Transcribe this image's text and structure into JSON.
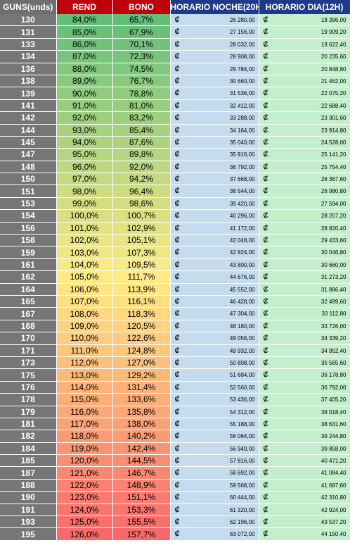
{
  "headers": {
    "guns": "GUNS(unds)",
    "rend": "REND",
    "bono": "BONO",
    "noche": "HORARIO NOCHE(20H)",
    "dia": "HORARIO DIA(12H)"
  },
  "currency_symbol": "₡",
  "colors": {
    "guns_bg": "#767676",
    "noche_bg": "#c5dcef",
    "dia_bg": "#c4efcd",
    "scale_low": "#63be7b",
    "scale_mid": "#ffeb84",
    "scale_high": "#f8696b"
  },
  "rows": [
    {
      "guns": "130",
      "rend": "84,0%",
      "bono": "65,7%",
      "noche": "26 280,00",
      "dia": "18 396,00"
    },
    {
      "guns": "131",
      "rend": "85,0%",
      "bono": "67,9%",
      "noche": "27 156,00",
      "dia": "19 009,20"
    },
    {
      "guns": "133",
      "rend": "86,0%",
      "bono": "70,1%",
      "noche": "28 032,00",
      "dia": "19 622,40"
    },
    {
      "guns": "134",
      "rend": "87,0%",
      "bono": "72,3%",
      "noche": "28 908,00",
      "dia": "20 235,60"
    },
    {
      "guns": "136",
      "rend": "88,0%",
      "bono": "74,5%",
      "noche": "29 784,00",
      "dia": "20 848,80"
    },
    {
      "guns": "138",
      "rend": "89,0%",
      "bono": "76,7%",
      "noche": "30 660,00",
      "dia": "21 462,00"
    },
    {
      "guns": "139",
      "rend": "90,0%",
      "bono": "78,8%",
      "noche": "31 536,00",
      "dia": "22 075,20"
    },
    {
      "guns": "141",
      "rend": "91,0%",
      "bono": "81,0%",
      "noche": "32 412,00",
      "dia": "22 688,40"
    },
    {
      "guns": "142",
      "rend": "92,0%",
      "bono": "83,2%",
      "noche": "33 288,00",
      "dia": "23 301,60"
    },
    {
      "guns": "144",
      "rend": "93,0%",
      "bono": "85,4%",
      "noche": "34 164,00",
      "dia": "23 914,80"
    },
    {
      "guns": "145",
      "rend": "94,0%",
      "bono": "87,6%",
      "noche": "35 040,00",
      "dia": "24 528,00"
    },
    {
      "guns": "147",
      "rend": "95,0%",
      "bono": "89,8%",
      "noche": "35 916,00",
      "dia": "25 141,20"
    },
    {
      "guns": "148",
      "rend": "96,0%",
      "bono": "92,0%",
      "noche": "36 792,00",
      "dia": "25 754,40"
    },
    {
      "guns": "150",
      "rend": "97,0%",
      "bono": "94,2%",
      "noche": "37 668,00",
      "dia": "26 367,60"
    },
    {
      "guns": "151",
      "rend": "98,0%",
      "bono": "96,4%",
      "noche": "38 544,00",
      "dia": "26 980,80"
    },
    {
      "guns": "153",
      "rend": "99,0%",
      "bono": "98,6%",
      "noche": "39 420,00",
      "dia": "27 594,00"
    },
    {
      "guns": "154",
      "rend": "100,0%",
      "bono": "100,7%",
      "noche": "40 296,00",
      "dia": "28 207,20"
    },
    {
      "guns": "156",
      "rend": "101,0%",
      "bono": "102,9%",
      "noche": "41 172,00",
      "dia": "28 820,40"
    },
    {
      "guns": "158",
      "rend": "102,0%",
      "bono": "105,1%",
      "noche": "42 048,00",
      "dia": "29 433,60"
    },
    {
      "guns": "159",
      "rend": "103,0%",
      "bono": "107,3%",
      "noche": "42 924,00",
      "dia": "30 046,80"
    },
    {
      "guns": "161",
      "rend": "104,0%",
      "bono": "109,5%",
      "noche": "43 800,00",
      "dia": "30 660,00"
    },
    {
      "guns": "162",
      "rend": "105,0%",
      "bono": "111,7%",
      "noche": "44 676,00",
      "dia": "31 273,20"
    },
    {
      "guns": "164",
      "rend": "106,0%",
      "bono": "113,9%",
      "noche": "45 552,00",
      "dia": "31 886,40"
    },
    {
      "guns": "165",
      "rend": "107,0%",
      "bono": "116,1%",
      "noche": "46 428,00",
      "dia": "32 499,60"
    },
    {
      "guns": "167",
      "rend": "108,0%",
      "bono": "118,3%",
      "noche": "47 304,00",
      "dia": "33 112,80"
    },
    {
      "guns": "168",
      "rend": "109,0%",
      "bono": "120,5%",
      "noche": "48 180,00",
      "dia": "33 726,00"
    },
    {
      "guns": "170",
      "rend": "110,0%",
      "bono": "122,6%",
      "noche": "49 056,00",
      "dia": "34 339,20"
    },
    {
      "guns": "171",
      "rend": "111,0%",
      "bono": "124,8%",
      "noche": "49 932,00",
      "dia": "34 952,40"
    },
    {
      "guns": "173",
      "rend": "112,0%",
      "bono": "127,0%",
      "noche": "50 808,00",
      "dia": "35 565,60"
    },
    {
      "guns": "175",
      "rend": "113,0%",
      "bono": "129,2%",
      "noche": "51 684,00",
      "dia": "36 178,80"
    },
    {
      "guns": "176",
      "rend": "114,0%",
      "bono": "131,4%",
      "noche": "52 560,00",
      "dia": "36 792,00"
    },
    {
      "guns": "178",
      "rend": "115,0%",
      "bono": "133,6%",
      "noche": "53 436,00",
      "dia": "37 405,20"
    },
    {
      "guns": "179",
      "rend": "116,0%",
      "bono": "135,8%",
      "noche": "54 312,00",
      "dia": "38 018,40"
    },
    {
      "guns": "181",
      "rend": "117,0%",
      "bono": "138,0%",
      "noche": "55 188,00",
      "dia": "38 631,60"
    },
    {
      "guns": "182",
      "rend": "118,0%",
      "bono": "140,2%",
      "noche": "56 064,00",
      "dia": "39 244,80"
    },
    {
      "guns": "184",
      "rend": "119,0%",
      "bono": "142,4%",
      "noche": "56 940,00",
      "dia": "39 858,00"
    },
    {
      "guns": "185",
      "rend": "120,0%",
      "bono": "144,5%",
      "noche": "57 816,00",
      "dia": "40 471,20"
    },
    {
      "guns": "187",
      "rend": "121,0%",
      "bono": "146,7%",
      "noche": "58 692,00",
      "dia": "41 084,40"
    },
    {
      "guns": "188",
      "rend": "122,0%",
      "bono": "148,9%",
      "noche": "59 568,00",
      "dia": "41 697,60"
    },
    {
      "guns": "190",
      "rend": "123,0%",
      "bono": "151,1%",
      "noche": "60 444,00",
      "dia": "42 310,80"
    },
    {
      "guns": "191",
      "rend": "124,0%",
      "bono": "153,3%",
      "noche": "61 320,00",
      "dia": "42 924,00"
    },
    {
      "guns": "193",
      "rend": "125,0%",
      "bono": "155,5%",
      "noche": "62 196,00",
      "dia": "43 537,20"
    },
    {
      "guns": "195",
      "rend": "126,0%",
      "bono": "157,7%",
      "noche": "63 072,00",
      "dia": "44 150,40"
    }
  ]
}
